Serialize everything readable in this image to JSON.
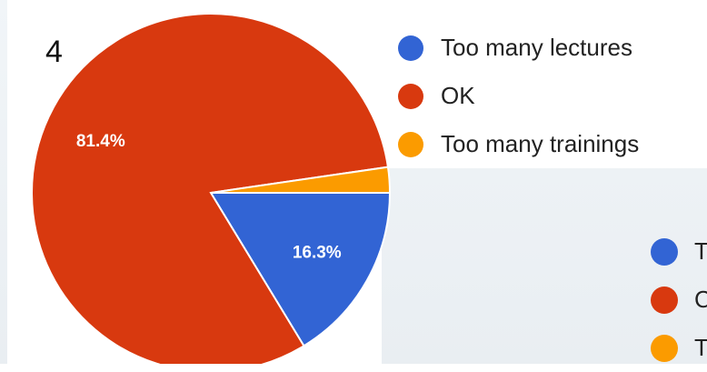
{
  "chart_number": "4",
  "colors": {
    "blue": "#3264d4",
    "red": "#d8390f",
    "orange": "#fb9b00"
  },
  "chart_data": {
    "type": "pie",
    "labels": [
      "Too many lectures",
      "OK",
      "Too many trainings"
    ],
    "values": [
      16.3,
      81.4,
      2.3
    ],
    "data_labels": [
      "16.3%",
      "81.4%",
      ""
    ],
    "legend_position": "right"
  },
  "secondary_legend": {
    "labels": [
      "T",
      "C",
      "T"
    ]
  }
}
